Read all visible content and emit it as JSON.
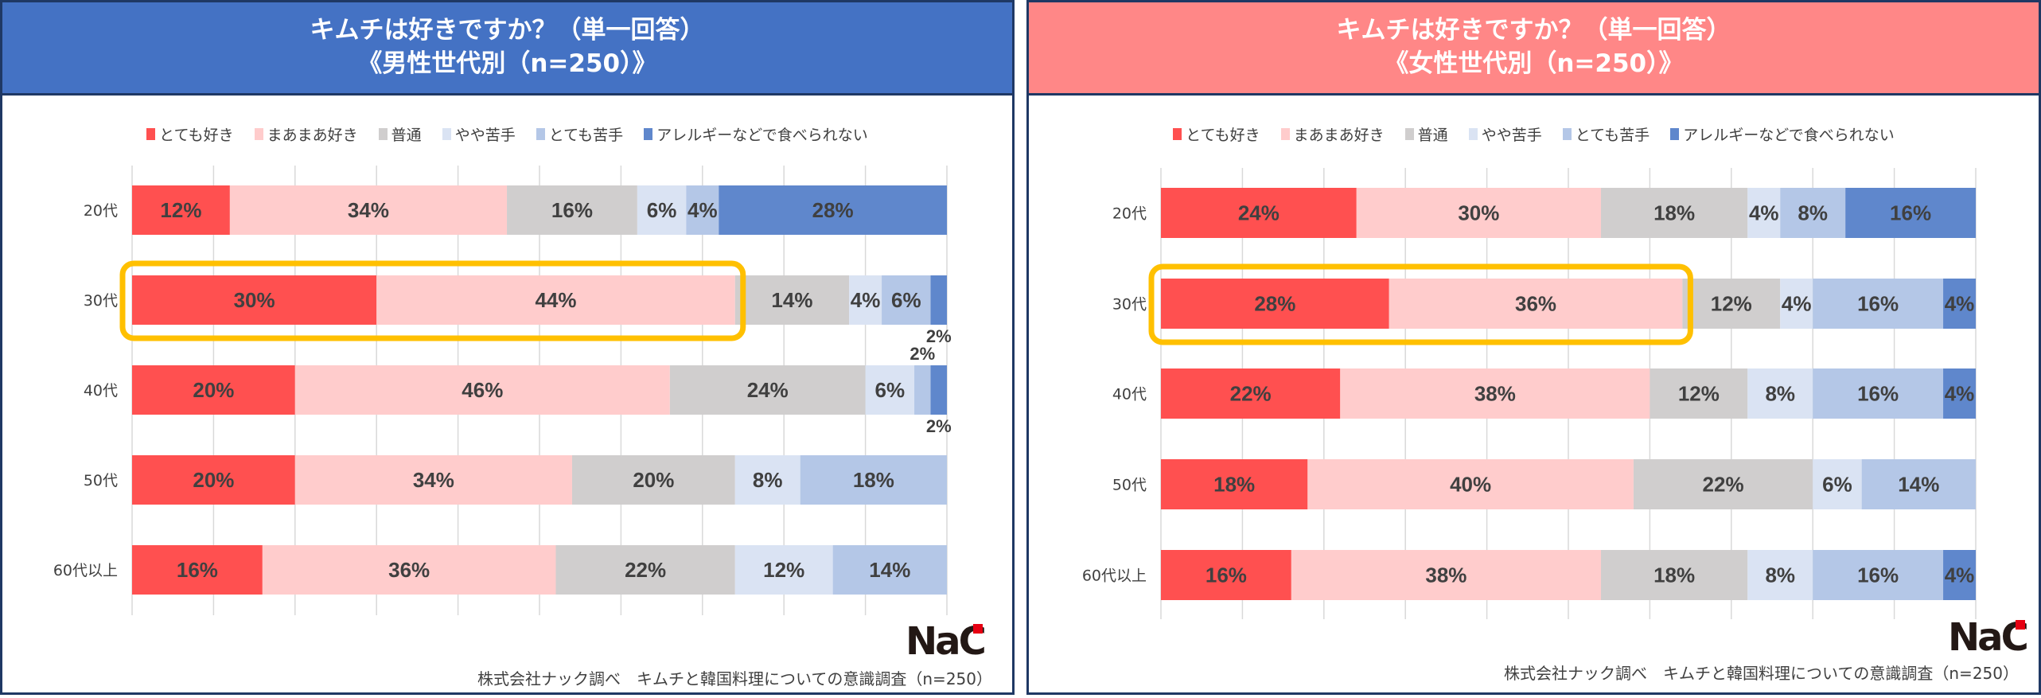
{
  "legend": [
    "とても好き",
    "まあまあ好き",
    "普通",
    "やや苦手",
    "とても苦手",
    "アレルギーなどで食べられない"
  ],
  "colors": [
    "#ff5050",
    "#ffcccc",
    "#d0cece",
    "#dae3f3",
    "#b4c7e7",
    "#5f87cc"
  ],
  "highlight_color": "#ffc000",
  "footer": "株式会社ナック調べ　キムチと韓国料理についての意識調査（n=250）",
  "logo": "NaC",
  "panels": [
    {
      "title_line1": "キムチは好きですか？（単一回答）",
      "title_line2": "《男性世代別（n=250）》"
    },
    {
      "title_line1": "キムチは好きですか？（単一回答）",
      "title_line2": "《女性世代別（n=250）》"
    }
  ],
  "chart_data": [
    {
      "type": "bar",
      "orientation": "horizontal-stacked-100",
      "title": "キムチは好きですか？（単一回答）《男性世代別（n=250）》",
      "categories": [
        "20代",
        "30代",
        "40代",
        "50代",
        "60代以上"
      ],
      "xlim": [
        0,
        100
      ],
      "grid": true,
      "legend_position": "top",
      "highlight": {
        "category": "30代",
        "series": [
          "とても好き",
          "まあまあ好き"
        ]
      },
      "series": [
        {
          "name": "とても好き",
          "values": [
            12,
            30,
            20,
            20,
            16
          ]
        },
        {
          "name": "まあまあ好き",
          "values": [
            34,
            44,
            46,
            34,
            36
          ]
        },
        {
          "name": "普通",
          "values": [
            16,
            14,
            24,
            20,
            22
          ]
        },
        {
          "name": "やや苦手",
          "values": [
            6,
            4,
            6,
            8,
            12
          ]
        },
        {
          "name": "とても苦手",
          "values": [
            4,
            6,
            2,
            18,
            14
          ]
        },
        {
          "name": "アレルギーなどで食べられない",
          "values": [
            28,
            2,
            2,
            0,
            0
          ]
        }
      ]
    },
    {
      "type": "bar",
      "orientation": "horizontal-stacked-100",
      "title": "キムチは好きですか？（単一回答）《女性世代別（n=250）》",
      "categories": [
        "20代",
        "30代",
        "40代",
        "50代",
        "60代以上"
      ],
      "xlim": [
        0,
        100
      ],
      "grid": true,
      "legend_position": "top",
      "highlight": {
        "category": "30代",
        "series": [
          "とても好き",
          "まあまあ好き"
        ]
      },
      "series": [
        {
          "name": "とても好き",
          "values": [
            24,
            28,
            22,
            18,
            16
          ]
        },
        {
          "name": "まあまあ好き",
          "values": [
            30,
            36,
            38,
            40,
            38
          ]
        },
        {
          "name": "普通",
          "values": [
            18,
            12,
            12,
            22,
            18
          ]
        },
        {
          "name": "やや苦手",
          "values": [
            4,
            4,
            8,
            6,
            8
          ]
        },
        {
          "name": "とても苦手",
          "values": [
            8,
            16,
            16,
            14,
            16
          ]
        },
        {
          "name": "アレルギーなどで食べられない",
          "values": [
            16,
            4,
            4,
            0,
            4
          ]
        }
      ]
    }
  ]
}
